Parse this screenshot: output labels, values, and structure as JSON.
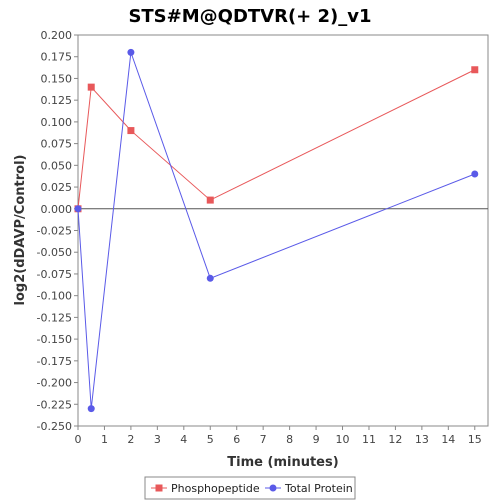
{
  "chart_data": {
    "type": "line",
    "title": "STS#M@QDTVR(+ 2)_v1",
    "xlabel": "Time (minutes)",
    "ylabel": "log2(dDAVP/Control)",
    "xlim": [
      0,
      15.5
    ],
    "ylim": [
      -0.25,
      0.2
    ],
    "x_ticks": [
      0,
      1,
      2,
      3,
      4,
      5,
      6,
      7,
      8,
      9,
      10,
      11,
      12,
      13,
      14,
      15
    ],
    "x_tick_labels": [
      "0",
      "1",
      "2",
      "3",
      "4",
      "5",
      "6",
      "7",
      "8",
      "9",
      "10",
      "11",
      "12",
      "13",
      "14",
      "15"
    ],
    "y_ticks": [
      0.2,
      0.175,
      0.15,
      0.125,
      0.1,
      0.075,
      0.05,
      0.025,
      0.0,
      -0.025,
      -0.05,
      -0.075,
      -0.1,
      -0.125,
      -0.15,
      -0.175,
      -0.2,
      -0.225,
      -0.25
    ],
    "y_tick_labels": [
      "0.200",
      "0.175",
      "0.150",
      "0.125",
      "0.100",
      "0.075",
      "0.050",
      "0.025",
      "0.000",
      "-0.025",
      "-0.050",
      "-0.075",
      "-0.100",
      "-0.125",
      "-0.150",
      "-0.175",
      "-0.200",
      "-0.225",
      "-0.250"
    ],
    "zero_line": true,
    "grid": false,
    "legend_position": "bottom-center",
    "series": [
      {
        "name": "Phosphopeptide",
        "color": "#e8585a",
        "marker": "square",
        "x": [
          0,
          0.5,
          2,
          5,
          15
        ],
        "y": [
          0.0,
          0.14,
          0.09,
          0.01,
          0.16
        ]
      },
      {
        "name": "Total Protein",
        "color": "#5a5ae8",
        "marker": "circle",
        "x": [
          0,
          0.5,
          2,
          5,
          15
        ],
        "y": [
          0.0,
          -0.23,
          0.18,
          -0.08,
          0.04
        ]
      }
    ]
  }
}
